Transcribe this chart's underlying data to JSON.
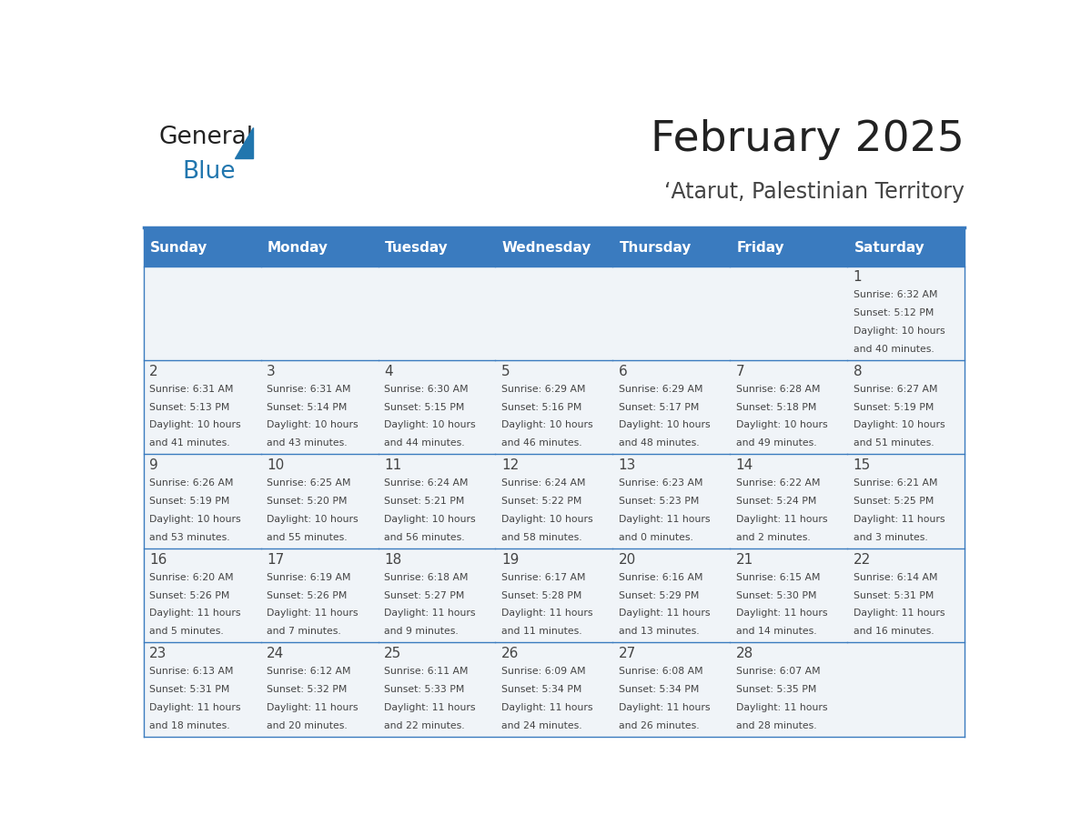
{
  "title": "February 2025",
  "subtitle": "‘Atarut, Palestinian Territory",
  "days_of_week": [
    "Sunday",
    "Monday",
    "Tuesday",
    "Wednesday",
    "Thursday",
    "Friday",
    "Saturday"
  ],
  "header_bg": "#3a7bbf",
  "header_text": "#ffffff",
  "cell_bg_light": "#f0f4f8",
  "cell_bg_white": "#ffffff",
  "grid_line_color": "#3a7bbf",
  "text_color": "#444444",
  "title_color": "#222222",
  "subtitle_color": "#444444",
  "calendar": [
    [
      null,
      null,
      null,
      null,
      null,
      null,
      1
    ],
    [
      2,
      3,
      4,
      5,
      6,
      7,
      8
    ],
    [
      9,
      10,
      11,
      12,
      13,
      14,
      15
    ],
    [
      16,
      17,
      18,
      19,
      20,
      21,
      22
    ],
    [
      23,
      24,
      25,
      26,
      27,
      28,
      null
    ]
  ],
  "cell_data": {
    "1": {
      "sunrise": "6:32 AM",
      "sunset": "5:12 PM",
      "daylight": "10 hours and 40 minutes."
    },
    "2": {
      "sunrise": "6:31 AM",
      "sunset": "5:13 PM",
      "daylight": "10 hours and 41 minutes."
    },
    "3": {
      "sunrise": "6:31 AM",
      "sunset": "5:14 PM",
      "daylight": "10 hours and 43 minutes."
    },
    "4": {
      "sunrise": "6:30 AM",
      "sunset": "5:15 PM",
      "daylight": "10 hours and 44 minutes."
    },
    "5": {
      "sunrise": "6:29 AM",
      "sunset": "5:16 PM",
      "daylight": "10 hours and 46 minutes."
    },
    "6": {
      "sunrise": "6:29 AM",
      "sunset": "5:17 PM",
      "daylight": "10 hours and 48 minutes."
    },
    "7": {
      "sunrise": "6:28 AM",
      "sunset": "5:18 PM",
      "daylight": "10 hours and 49 minutes."
    },
    "8": {
      "sunrise": "6:27 AM",
      "sunset": "5:19 PM",
      "daylight": "10 hours and 51 minutes."
    },
    "9": {
      "sunrise": "6:26 AM",
      "sunset": "5:19 PM",
      "daylight": "10 hours and 53 minutes."
    },
    "10": {
      "sunrise": "6:25 AM",
      "sunset": "5:20 PM",
      "daylight": "10 hours and 55 minutes."
    },
    "11": {
      "sunrise": "6:24 AM",
      "sunset": "5:21 PM",
      "daylight": "10 hours and 56 minutes."
    },
    "12": {
      "sunrise": "6:24 AM",
      "sunset": "5:22 PM",
      "daylight": "10 hours and 58 minutes."
    },
    "13": {
      "sunrise": "6:23 AM",
      "sunset": "5:23 PM",
      "daylight": "11 hours and 0 minutes."
    },
    "14": {
      "sunrise": "6:22 AM",
      "sunset": "5:24 PM",
      "daylight": "11 hours and 2 minutes."
    },
    "15": {
      "sunrise": "6:21 AM",
      "sunset": "5:25 PM",
      "daylight": "11 hours and 3 minutes."
    },
    "16": {
      "sunrise": "6:20 AM",
      "sunset": "5:26 PM",
      "daylight": "11 hours and 5 minutes."
    },
    "17": {
      "sunrise": "6:19 AM",
      "sunset": "5:26 PM",
      "daylight": "11 hours and 7 minutes."
    },
    "18": {
      "sunrise": "6:18 AM",
      "sunset": "5:27 PM",
      "daylight": "11 hours and 9 minutes."
    },
    "19": {
      "sunrise": "6:17 AM",
      "sunset": "5:28 PM",
      "daylight": "11 hours and 11 minutes."
    },
    "20": {
      "sunrise": "6:16 AM",
      "sunset": "5:29 PM",
      "daylight": "11 hours and 13 minutes."
    },
    "21": {
      "sunrise": "6:15 AM",
      "sunset": "5:30 PM",
      "daylight": "11 hours and 14 minutes."
    },
    "22": {
      "sunrise": "6:14 AM",
      "sunset": "5:31 PM",
      "daylight": "11 hours and 16 minutes."
    },
    "23": {
      "sunrise": "6:13 AM",
      "sunset": "5:31 PM",
      "daylight": "11 hours and 18 minutes."
    },
    "24": {
      "sunrise": "6:12 AM",
      "sunset": "5:32 PM",
      "daylight": "11 hours and 20 minutes."
    },
    "25": {
      "sunrise": "6:11 AM",
      "sunset": "5:33 PM",
      "daylight": "11 hours and 22 minutes."
    },
    "26": {
      "sunrise": "6:09 AM",
      "sunset": "5:34 PM",
      "daylight": "11 hours and 24 minutes."
    },
    "27": {
      "sunrise": "6:08 AM",
      "sunset": "5:34 PM",
      "daylight": "11 hours and 26 minutes."
    },
    "28": {
      "sunrise": "6:07 AM",
      "sunset": "5:35 PM",
      "daylight": "11 hours and 28 minutes."
    }
  },
  "logo_text_general": "General",
  "logo_text_blue": "Blue",
  "logo_color_general": "#222222",
  "logo_color_blue": "#2176ae",
  "logo_triangle_color": "#2176ae"
}
